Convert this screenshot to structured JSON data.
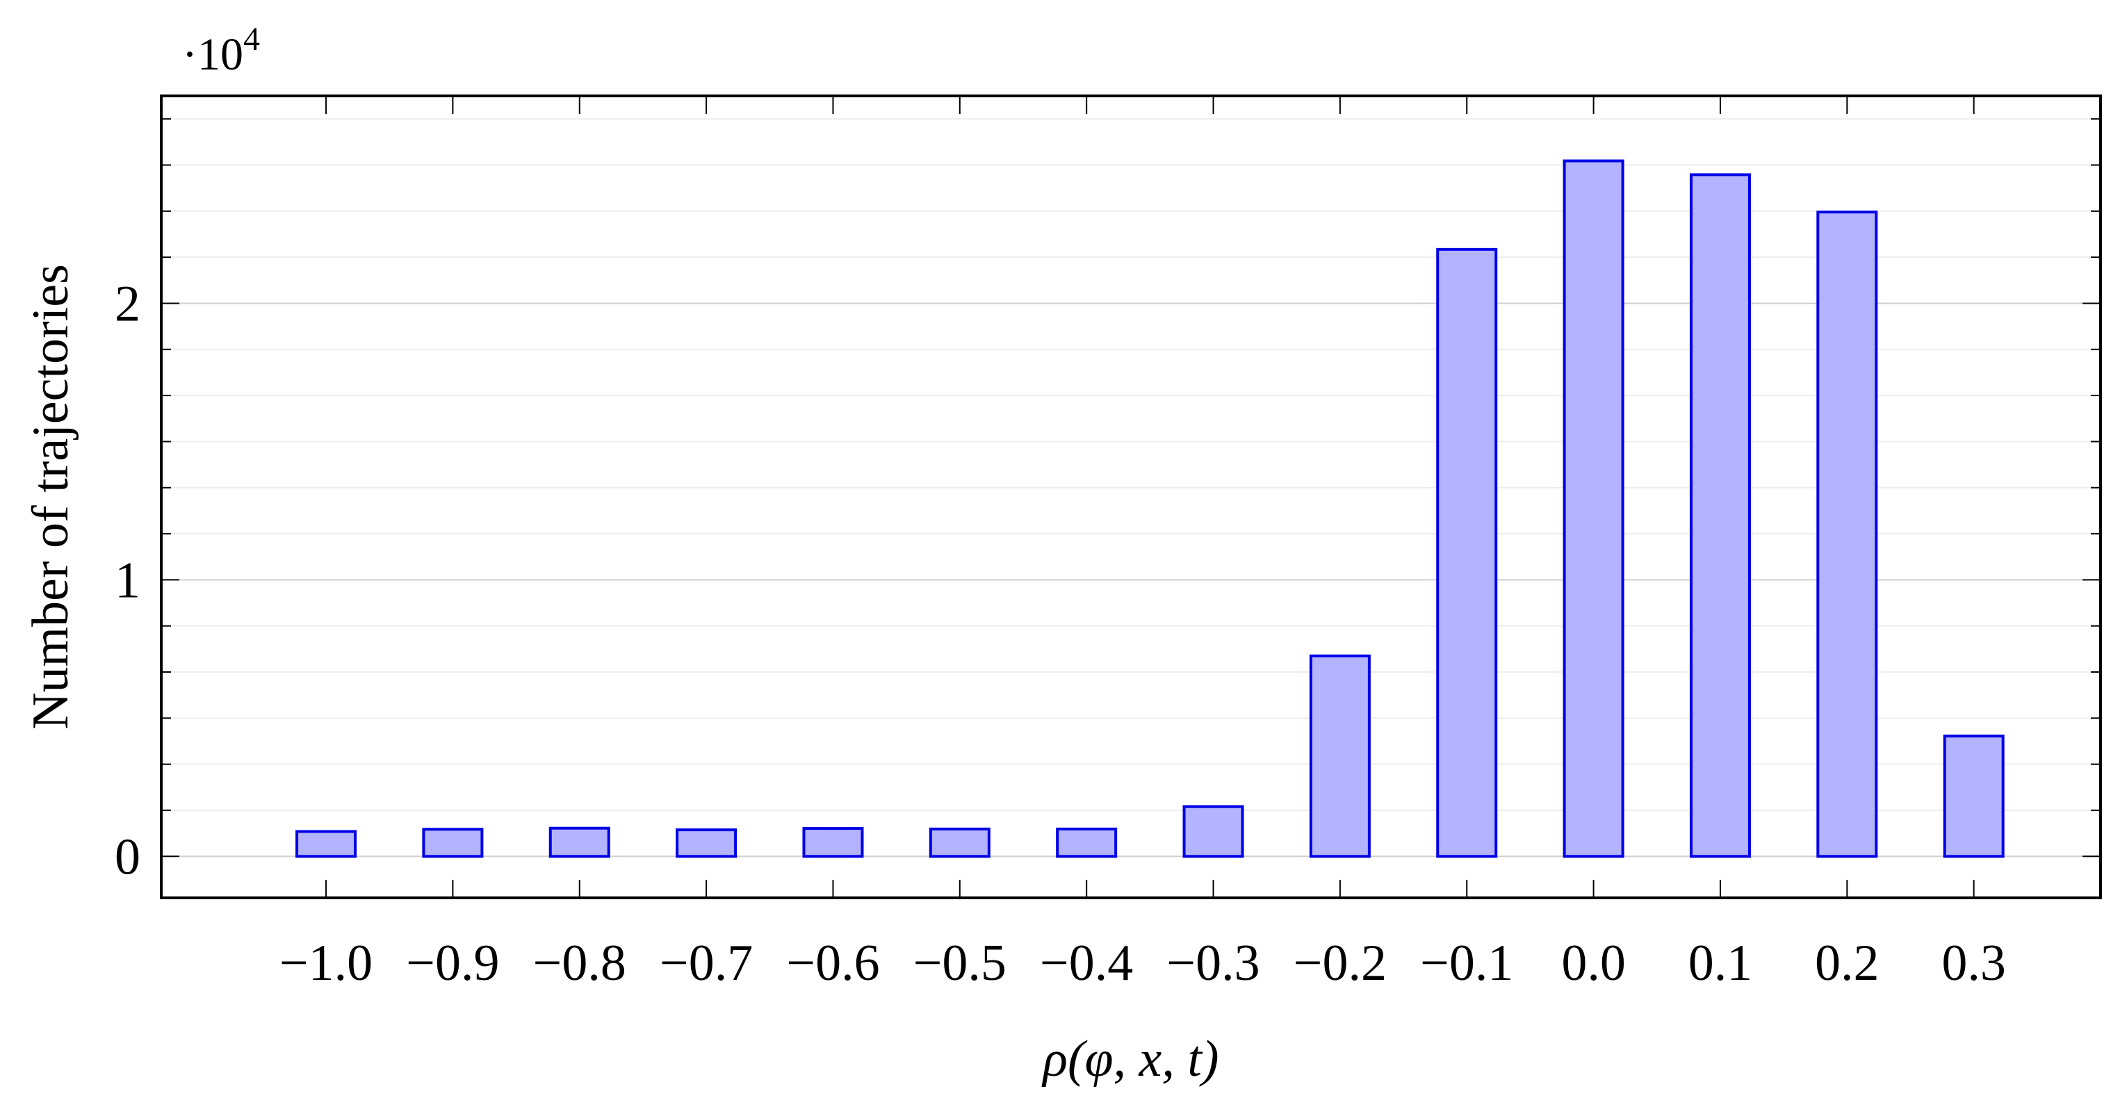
{
  "chart_data": {
    "type": "bar",
    "categories": [
      "−1.0",
      "−0.9",
      "−0.8",
      "−0.7",
      "−0.6",
      "−0.5",
      "−0.4",
      "−0.3",
      "−0.2",
      "−0.1",
      "0.0",
      "0.1",
      "0.2",
      "0.3"
    ],
    "x": [
      -1.0,
      -0.9,
      -0.8,
      -0.7,
      -0.6,
      -0.5,
      -0.4,
      -0.3,
      -0.2,
      -0.1,
      0.0,
      0.1,
      0.2,
      0.3
    ],
    "values": [
      900,
      980,
      1020,
      960,
      1010,
      990,
      990,
      1800,
      7250,
      21950,
      25150,
      24650,
      23300,
      4350
    ],
    "xlabel": "ρ(φ, x, t)",
    "ylabel": "Number of trajectories",
    "y_scale_label": "·10",
    "y_scale_exponent": "4",
    "yticks": [
      0,
      10000,
      20000
    ],
    "ytick_labels": [
      "0",
      "1",
      "2"
    ],
    "xlim": [
      -1.13,
      0.4
    ],
    "ylim": [
      -1500,
      27500
    ],
    "grid": "major and minor horizontal",
    "bar_fill": "#b3b3ff",
    "bar_stroke": "#0000e6"
  }
}
